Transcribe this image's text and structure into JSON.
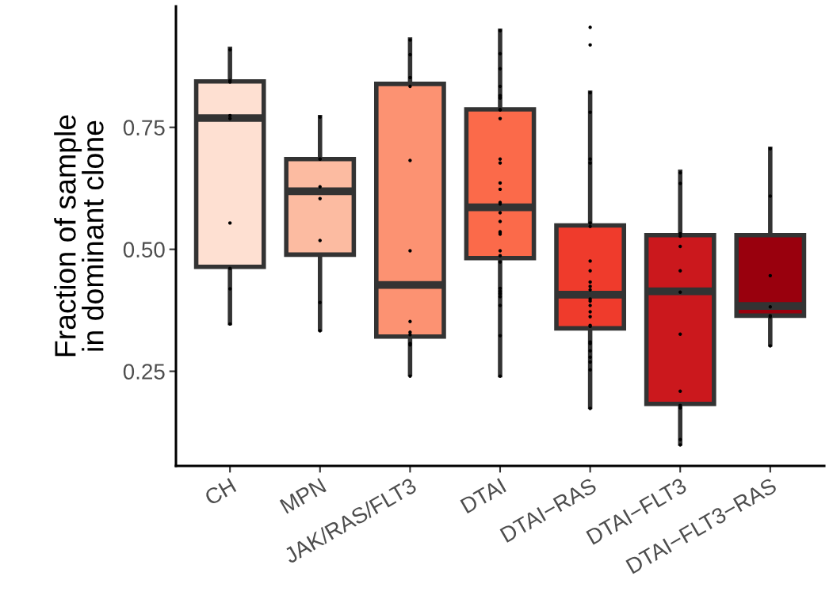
{
  "chart_data": {
    "type": "box",
    "ylabel": "Fraction of sample\nin dominant clone",
    "categories": [
      "CH",
      "MPN",
      "JAK/RAS/FLT3",
      "DTAI",
      "DTAI−RAS",
      "DTAI−FLT3",
      "DTAI−FLT3−RAS"
    ],
    "colors": [
      "#fee0d2",
      "#fcbba1",
      "#fc9272",
      "#fb6a4a",
      "#ef3b2c",
      "#cb181d",
      "#99000d"
    ],
    "boxes": [
      {
        "low": 0.349,
        "q1": 0.464,
        "median": 0.769,
        "q3": 0.844,
        "high": 0.911
      },
      {
        "low": 0.336,
        "q1": 0.489,
        "median": 0.619,
        "q3": 0.685,
        "high": 0.771
      },
      {
        "low": 0.244,
        "q1": 0.321,
        "median": 0.427,
        "q3": 0.839,
        "high": 0.93
      },
      {
        "low": 0.242,
        "q1": 0.482,
        "median": 0.586,
        "q3": 0.787,
        "high": 0.948
      },
      {
        "low": 0.177,
        "q1": 0.338,
        "median": 0.407,
        "q3": 0.549,
        "high": 0.821
      },
      {
        "low": 0.102,
        "q1": 0.183,
        "median": 0.414,
        "q3": 0.529,
        "high": 0.659
      },
      {
        "low": 0.305,
        "q1": 0.364,
        "median": 0.384,
        "q3": 0.529,
        "high": 0.706
      }
    ],
    "series": [
      {
        "type": "scatter",
        "color": "#000000",
        "x": [
          "CH",
          "CH",
          "CH",
          "CH",
          "CH",
          "CH",
          "CH",
          "CH",
          "CH",
          "MPN",
          "MPN",
          "MPN",
          "MPN",
          "MPN",
          "MPN",
          "MPN",
          "MPN",
          "JAK/RAS/FLT3",
          "JAK/RAS/FLT3",
          "JAK/RAS/FLT3",
          "JAK/RAS/FLT3",
          "JAK/RAS/FLT3",
          "JAK/RAS/FLT3",
          "JAK/RAS/FLT3",
          "JAK/RAS/FLT3",
          "JAK/RAS/FLT3",
          "JAK/RAS/FLT3",
          "JAK/RAS/FLT3",
          "JAK/RAS/FLT3",
          "DTAI",
          "DTAI",
          "DTAI",
          "DTAI",
          "DTAI",
          "DTAI",
          "DTAI",
          "DTAI",
          "DTAI",
          "DTAI",
          "DTAI",
          "DTAI",
          "DTAI",
          "DTAI",
          "DTAI",
          "DTAI",
          "DTAI",
          "DTAI",
          "DTAI",
          "DTAI",
          "DTAI",
          "DTAI",
          "DTAI",
          "DTAI",
          "DTAI",
          "DTAI",
          "DTAI",
          "DTAI",
          "DTAI",
          "DTAI",
          "DTAI",
          "DTAI",
          "DTAI−RAS",
          "DTAI−RAS",
          "DTAI−RAS",
          "DTAI−RAS",
          "DTAI−RAS",
          "DTAI−RAS",
          "DTAI−RAS",
          "DTAI−RAS",
          "DTAI−RAS",
          "DTAI−RAS",
          "DTAI−RAS",
          "DTAI−RAS",
          "DTAI−RAS",
          "DTAI−RAS",
          "DTAI−RAS",
          "DTAI−RAS",
          "DTAI−RAS",
          "DTAI−RAS",
          "DTAI−RAS",
          "DTAI−RAS",
          "DTAI−RAS",
          "DTAI−RAS",
          "DTAI−RAS",
          "DTAI−RAS",
          "DTAI−RAS",
          "DTAI−RAS",
          "DTAI−RAS",
          "DTAI−FLT3",
          "DTAI−FLT3",
          "DTAI−FLT3",
          "DTAI−FLT3",
          "DTAI−FLT3",
          "DTAI−FLT3",
          "DTAI−FLT3",
          "DTAI−FLT3",
          "DTAI−FLT3",
          "DTAI−FLT3",
          "DTAI−FLT3",
          "DTAI−FLT3",
          "DTAI−FLT3",
          "DTAI−FLT3−RAS",
          "DTAI−FLT3−RAS",
          "DTAI−FLT3−RAS",
          "DTAI−FLT3−RAS",
          "DTAI−FLT3−RAS",
          "DTAI−FLT3−RAS",
          "DTAI−FLT3−RAS"
        ],
        "values": [
          0.909,
          0.843,
          0.846,
          0.774,
          0.768,
          0.554,
          0.461,
          0.419,
          0.347,
          0.771,
          0.685,
          0.685,
          0.628,
          0.604,
          0.518,
          0.391,
          0.333,
          0.929,
          0.899,
          0.852,
          0.834,
          0.682,
          0.497,
          0.352,
          0.33,
          0.325,
          0.307,
          0.304,
          0.24,
          0.948,
          0.901,
          0.87,
          0.834,
          0.81,
          0.815,
          0.812,
          0.786,
          0.786,
          0.786,
          0.768,
          0.685,
          0.677,
          0.636,
          0.623,
          0.596,
          0.593,
          0.575,
          0.557,
          0.536,
          0.531,
          0.534,
          0.497,
          0.487,
          0.474,
          0.42,
          0.414,
          0.409,
          0.403,
          0.385,
          0.323,
          0.24,
          0.955,
          0.919,
          0.821,
          0.781,
          0.685,
          0.677,
          0.554,
          0.547,
          0.476,
          0.456,
          0.433,
          0.424,
          0.417,
          0.398,
          0.394,
          0.385,
          0.372,
          0.362,
          0.344,
          0.342,
          0.31,
          0.307,
          0.292,
          0.279,
          0.269,
          0.253,
          0.174,
          0.657,
          0.635,
          0.527,
          0.532,
          0.506,
          0.456,
          0.412,
          0.326,
          0.209,
          0.18,
          0.175,
          0.11,
          0.099,
          0.706,
          0.609,
          0.446,
          0.382,
          0.364,
          0.362,
          0.302
        ]
      }
    ],
    "ylim": [
      0.056,
      0.998
    ],
    "yticks": [
      {
        "value": 0.25,
        "label": "0.25"
      },
      {
        "value": 0.5,
        "label": "0.50"
      },
      {
        "value": 0.75,
        "label": "0.75"
      }
    ],
    "grid": false,
    "legend": false
  }
}
